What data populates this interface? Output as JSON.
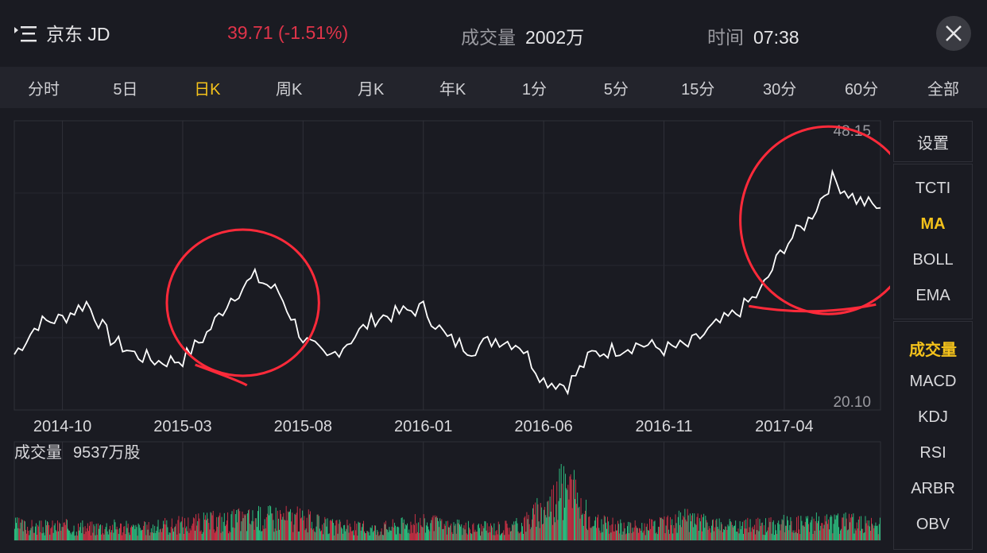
{
  "header": {
    "title": "京东 JD",
    "price": "39.71 (-1.51%)",
    "volume_label": "成交量",
    "volume_value": "2002万",
    "time_label": "时间",
    "time_value": "07:38",
    "icons": [
      "menu-icon",
      "close-icon"
    ]
  },
  "tabs": [
    "分时",
    "5日",
    "日K",
    "周K",
    "月K",
    "年K",
    "1分",
    "5分",
    "15分",
    "30分",
    "60分",
    "全部"
  ],
  "active_tab": "日K",
  "side_menu": {
    "settings": "设置",
    "main_indicators": [
      "TCTI",
      "MA",
      "BOLL",
      "EMA"
    ],
    "sub_indicators": [
      "成交量",
      "MACD",
      "KDJ",
      "RSI",
      "ARBR",
      "OBV"
    ],
    "active_main": "MA",
    "active_sub": "成交量"
  },
  "volume_panel": {
    "label": "成交量",
    "value": "9537万股"
  },
  "colors": {
    "up": "#e0344a",
    "down": "#2fd08a",
    "price_line": "#ffffff",
    "annotation": "#ff2a3a",
    "active": "#f4c21b"
  },
  "chart_data": {
    "type": "line",
    "title": "",
    "xlabel": "",
    "ylabel": "",
    "ylim": [
      20.1,
      48.15
    ],
    "ytick_labels": [
      "48.15",
      "20.10"
    ],
    "x_tick_labels": [
      "2014-10",
      "2015-03",
      "2015-08",
      "2016-01",
      "2016-06",
      "2016-11",
      "2017-04"
    ],
    "x": [
      "2014-08",
      "2014-09",
      "2014-10",
      "2014-11",
      "2014-12",
      "2015-01",
      "2015-02",
      "2015-03",
      "2015-04",
      "2015-05",
      "2015-06",
      "2015-07",
      "2015-08",
      "2015-09",
      "2015-10",
      "2015-11",
      "2015-12",
      "2016-01",
      "2016-02",
      "2016-03",
      "2016-04",
      "2016-05",
      "2016-06",
      "2016-07",
      "2016-08",
      "2016-09",
      "2016-10",
      "2016-11",
      "2016-12",
      "2017-01",
      "2017-02",
      "2017-03",
      "2017-04",
      "2017-05",
      "2017-06",
      "2017-07",
      "2017-08"
    ],
    "series": [
      {
        "values": [
          25.5,
          28.5,
          29.0,
          30.5,
          27.0,
          25.5,
          24.8,
          25.0,
          27.5,
          31.0,
          33.0,
          31.5,
          27.0,
          25.0,
          27.0,
          29.0,
          29.5,
          30.0,
          27.0,
          26.0,
          27.0,
          26.5,
          23.0,
          22.5,
          25.5,
          26.0,
          26.5,
          26.0,
          26.3,
          28.0,
          29.5,
          31.5,
          36.0,
          38.5,
          42.5,
          40.5,
          39.7
        ]
      }
    ],
    "volume_values": [
      2.6,
      2.2,
      2.4,
      2.1,
      2.5,
      2.0,
      2.3,
      2.8,
      3.2,
      3.5,
      3.8,
      4.2,
      3.6,
      2.4,
      2.2,
      2.0,
      2.6,
      3.0,
      2.4,
      2.1,
      2.2,
      2.6,
      5.5,
      9.5,
      3.0,
      2.4,
      2.3,
      2.6,
      3.6,
      2.5,
      2.3,
      2.6,
      2.8,
      3.0,
      3.2,
      2.9,
      2.5
    ],
    "annotations": [
      {
        "type": "circle",
        "around": "2015-03 to 2015-08 peak"
      },
      {
        "type": "circle",
        "around": "2017-04 to 2017-08 peak"
      }
    ],
    "grid": true
  }
}
